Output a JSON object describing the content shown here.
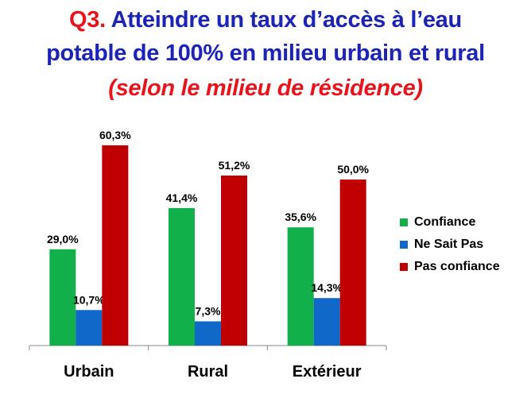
{
  "title": {
    "prefix": "Q3.",
    "line1": " Atteindre un taux d’accès à l’eau",
    "line2": "potable de 100% en milieu urbain et rural"
  },
  "subtitle": "(selon le milieu de résidence)",
  "chart_data": {
    "type": "bar",
    "categories": [
      "Urbain",
      "Rural",
      "Extérieur"
    ],
    "series": [
      {
        "name": "Confiance",
        "values": [
          29.0,
          41.4,
          35.6
        ],
        "labels": [
          "29,0%",
          "41,4%",
          "35,6%"
        ],
        "color": "#12b04a"
      },
      {
        "name": "Ne Sait Pas",
        "values": [
          10.7,
          7.3,
          14.3
        ],
        "labels": [
          "10,7%",
          "7,3%",
          "14,3%"
        ],
        "color": "#1068c8"
      },
      {
        "name": "Pas confiance",
        "values": [
          60.3,
          51.2,
          50.0
        ],
        "labels": [
          "60,3%",
          "51,2%",
          "50,0%"
        ],
        "color": "#c00000"
      }
    ],
    "ylim": [
      0,
      61
    ],
    "grid": false,
    "legend_position": "right"
  }
}
